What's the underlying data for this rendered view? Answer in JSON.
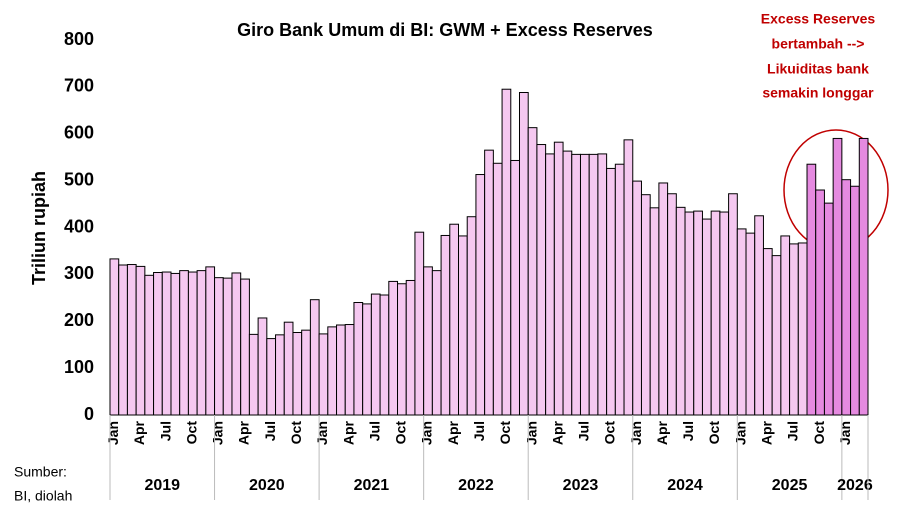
{
  "chart_data": {
    "type": "bar",
    "title": "Giro Bank Umum di BI: GWM + Excess Reserves",
    "y_label": "Triliun rupiah",
    "annotation": [
      "Excess Reserves",
      "bertambah -->",
      "Likuiditas bank",
      "semakin longgar"
    ],
    "source": [
      "Sumber:",
      "BI, diolah"
    ],
    "categories": [
      "Jan",
      null,
      null,
      "Apr",
      null,
      null,
      "Jul",
      null,
      null,
      "Oct",
      null,
      null,
      "Jan",
      null,
      null,
      "Apr",
      null,
      null,
      "Jul",
      null,
      null,
      "Oct",
      null,
      null,
      "Jan",
      null,
      null,
      "Apr",
      null,
      null,
      "Jul",
      null,
      null,
      "Oct",
      null,
      null,
      "Jan",
      null,
      null,
      "Apr",
      null,
      null,
      "Jul",
      null,
      null,
      "Oct",
      null,
      null,
      "Jan",
      null,
      null,
      "Apr",
      null,
      null,
      "Jul",
      null,
      null,
      "Oct",
      null,
      null,
      "Jan",
      null,
      null,
      "Apr",
      null,
      null,
      "Jul",
      null,
      null,
      "Oct",
      null,
      null,
      "Jan",
      null,
      null,
      "Apr",
      null,
      null,
      "Jul",
      null,
      null,
      "Oct",
      null,
      null,
      "Jan",
      null,
      null
    ],
    "year_groups": [
      {
        "label": "2019",
        "months": 12
      },
      {
        "label": "2020",
        "months": 12
      },
      {
        "label": "2021",
        "months": 12
      },
      {
        "label": "2022",
        "months": 12
      },
      {
        "label": "2023",
        "months": 12
      },
      {
        "label": "2024",
        "months": 12
      },
      {
        "label": "2025",
        "months": 12
      },
      {
        "label": "2026",
        "months": 3
      }
    ],
    "values": [
      333,
      320,
      321,
      317,
      298,
      304,
      305,
      302,
      308,
      305,
      308,
      316,
      293,
      292,
      303,
      290,
      172,
      207,
      163,
      171,
      198,
      176,
      181,
      246,
      173,
      188,
      192,
      193,
      240,
      237,
      258,
      256,
      285,
      280,
      287,
      390,
      316,
      308,
      383,
      407,
      382,
      423,
      513,
      565,
      537,
      695,
      543,
      688,
      613,
      577,
      557,
      582,
      563,
      556,
      556,
      556,
      557,
      526,
      535,
      587,
      499,
      470,
      442,
      495,
      472,
      443,
      433,
      435,
      418,
      435,
      433,
      472,
      397,
      388,
      425,
      355,
      340,
      382,
      365,
      367,
      535,
      480,
      452,
      590,
      502,
      488,
      590
    ],
    "color": "#f5c8f0",
    "highlight_color": "#e58ae0",
    "highlight_count": 7,
    "ylim": [
      0,
      800
    ],
    "yticks": [
      0,
      100,
      200,
      300,
      400,
      500,
      600,
      700,
      800
    ],
    "grid": false
  }
}
